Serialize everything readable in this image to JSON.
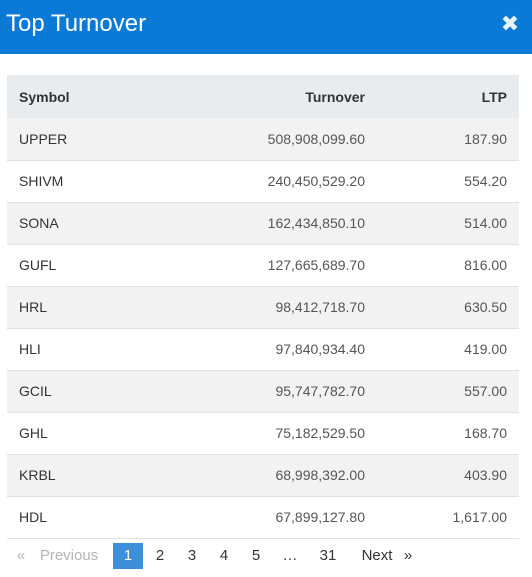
{
  "header": {
    "title": "Top Turnover",
    "close_glyph": "✖"
  },
  "table": {
    "columns": [
      "Symbol",
      "Turnover",
      "LTP"
    ],
    "rows": [
      [
        "UPPER",
        "508,908,099.60",
        "187.90"
      ],
      [
        "SHIVM",
        "240,450,529.20",
        "554.20"
      ],
      [
        "SONA",
        "162,434,850.10",
        "514.00"
      ],
      [
        "GUFL",
        "127,665,689.70",
        "816.00"
      ],
      [
        "HRL",
        "98,412,718.70",
        "630.50"
      ],
      [
        "HLI",
        "97,840,934.40",
        "419.00"
      ],
      [
        "GCIL",
        "95,747,782.70",
        "557.00"
      ],
      [
        "GHL",
        "75,182,529.50",
        "168.70"
      ],
      [
        "KRBL",
        "68,998,392.00",
        "403.90"
      ],
      [
        "HDL",
        "67,899,127.80",
        "1,617.00"
      ]
    ]
  },
  "pagination": {
    "prev_arrow": "«",
    "prev_label": "Previous",
    "pages": [
      "1",
      "2",
      "3",
      "4",
      "5"
    ],
    "ellipsis": "…",
    "last_page": "31",
    "next_label": "Next",
    "next_arrow": "»",
    "active_page": "1"
  },
  "colors": {
    "header": "#0a7ad6",
    "active_page": "#3d8fd9"
  },
  "icons": {
    "close": "close-icon"
  }
}
